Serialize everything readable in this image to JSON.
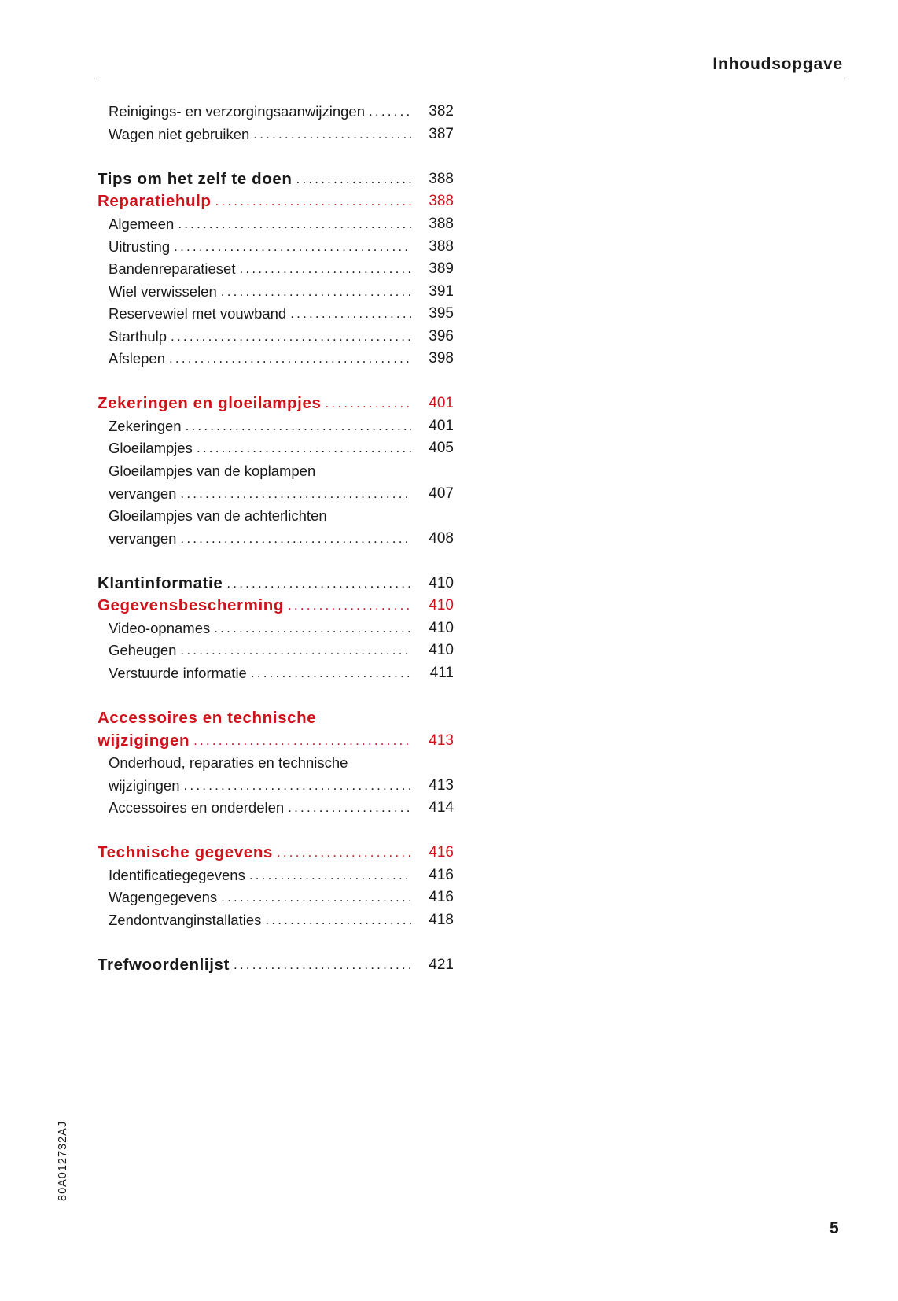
{
  "header": {
    "title": "Inhoudsopgave"
  },
  "colors": {
    "accent_red": "#d0121b",
    "text": "#1a1a1a"
  },
  "toc": [
    {
      "level": "sub",
      "label": "Reinigings- en verzorgingsaanwijzingen",
      "page": "382"
    },
    {
      "level": "sub",
      "label": "Wagen niet gebruiken",
      "page": "387"
    },
    {
      "level": "blank"
    },
    {
      "level": "main",
      "label": "Tips om het zelf te doen",
      "page": "388"
    },
    {
      "level": "main",
      "red": true,
      "label": "Reparatiehulp",
      "page": "388"
    },
    {
      "level": "sub",
      "label": "Algemeen",
      "page": "388"
    },
    {
      "level": "sub",
      "label": "Uitrusting",
      "page": "388"
    },
    {
      "level": "sub",
      "label": "Bandenreparatieset",
      "page": "389"
    },
    {
      "level": "sub",
      "label": "Wiel verwisselen",
      "page": "391"
    },
    {
      "level": "sub",
      "label": "Reservewiel met vouwband",
      "page": "395"
    },
    {
      "level": "sub",
      "label": "Starthulp",
      "page": "396"
    },
    {
      "level": "sub",
      "label": "Afslepen",
      "page": "398"
    },
    {
      "level": "blank"
    },
    {
      "level": "main",
      "red": true,
      "label": "Zekeringen en gloeilampjes",
      "page": "401"
    },
    {
      "level": "sub",
      "label": "Zekeringen",
      "page": "401"
    },
    {
      "level": "sub",
      "label": "Gloeilampjes",
      "page": "405"
    },
    {
      "level": "sub",
      "label": "Gloeilampjes van de koplampen",
      "continued": true
    },
    {
      "level": "sub",
      "label": "vervangen",
      "page": "407"
    },
    {
      "level": "sub",
      "label": "Gloeilampjes van de achterlichten",
      "continued": true
    },
    {
      "level": "sub",
      "label": "vervangen",
      "page": "408"
    },
    {
      "level": "blank"
    },
    {
      "level": "main",
      "label": "Klantinformatie",
      "page": "410"
    },
    {
      "level": "main",
      "red": true,
      "label": "Gegevensbescherming",
      "page": "410"
    },
    {
      "level": "sub",
      "label": "Video-opnames",
      "page": "410"
    },
    {
      "level": "sub",
      "label": "Geheugen",
      "page": "410"
    },
    {
      "level": "sub",
      "label": "Verstuurde informatie",
      "page": "411"
    },
    {
      "level": "blank"
    },
    {
      "level": "main",
      "red": true,
      "label": "Accessoires en technische",
      "continued": true
    },
    {
      "level": "main",
      "red": true,
      "label": "wijzigingen",
      "page": "413"
    },
    {
      "level": "sub",
      "label": "Onderhoud, reparaties en technische",
      "continued": true
    },
    {
      "level": "sub",
      "label": "wijzigingen",
      "page": "413"
    },
    {
      "level": "sub",
      "label": "Accessoires en onderdelen",
      "page": "414"
    },
    {
      "level": "blank"
    },
    {
      "level": "main",
      "red": true,
      "label": "Technische gegevens",
      "page": "416"
    },
    {
      "level": "sub",
      "label": "Identificatiegegevens",
      "page": "416"
    },
    {
      "level": "sub",
      "label": "Wagengegevens",
      "page": "416"
    },
    {
      "level": "sub",
      "label": "Zendontvanginstallaties",
      "page": "418"
    },
    {
      "level": "blank"
    },
    {
      "level": "main",
      "label": "Trefwoordenlijst",
      "page": "421"
    }
  ],
  "footer": {
    "document_code": "80A012732AJ",
    "page_number": "5"
  }
}
